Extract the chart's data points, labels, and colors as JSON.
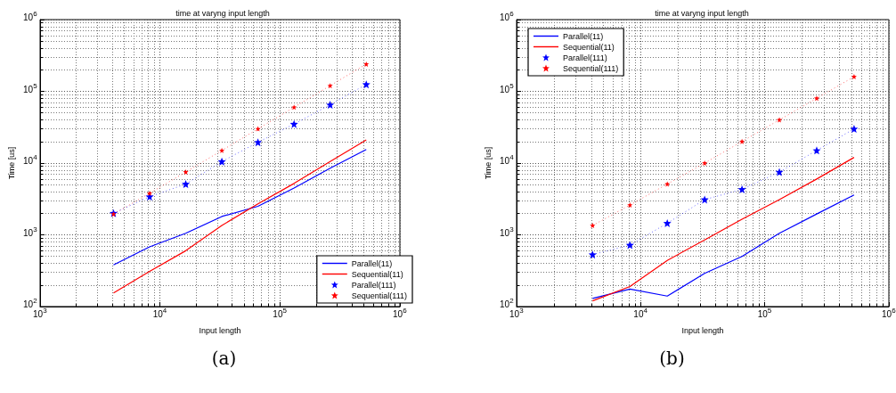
{
  "chart_data": [
    {
      "type": "line",
      "title": "time at varyng input length",
      "xlabel": "Input length",
      "ylabel": "Time [us]",
      "annotations": [
        "(a)"
      ],
      "x": [
        4096,
        8192,
        16384,
        32768,
        65536,
        131072,
        262144,
        524288
      ],
      "log": "xy",
      "grid": true,
      "legend": "bottom right",
      "xlim": [
        1000,
        1000000
      ],
      "xticks": [
        {
          "value": 1000,
          "label": "10$^{3}$"
        },
        {
          "value": 10000,
          "label": "10$^{4}$"
        },
        {
          "value": 100000,
          "label": "10$^{5}$"
        },
        {
          "value": 1000000,
          "label": "10$^{6}$"
        }
      ],
      "ylim": [
        100,
        1000000
      ],
      "yticks": [
        {
          "value": 100,
          "label": "10$^{2}$"
        },
        {
          "value": 1000,
          "label": "10$^{3}$"
        },
        {
          "value": 10000,
          "label": "10$^{4}$"
        },
        {
          "value": 100000,
          "label": "10$^{5}$"
        },
        {
          "value": 1000000,
          "label": "10$^{6}$"
        }
      ],
      "series": [
        {
          "name": "Parallel(11)",
          "color": "#0000ff",
          "marker": "none",
          "line_style": "solid",
          "values": [
            380,
            680,
            1050,
            1800,
            2500,
            4500,
            8500,
            15500
          ]
        },
        {
          "name": "Sequential(11)",
          "color": "#ff0000",
          "marker": "none",
          "line_style": "solid",
          "values": [
            155,
            310,
            600,
            1350,
            2700,
            5200,
            10500,
            21000
          ]
        },
        {
          "name": "Parallel(111)",
          "color": "#0000ff",
          "marker": "star",
          "line_style": "dotted",
          "values": [
            2000,
            3400,
            5100,
            10500,
            19500,
            35000,
            65000,
            125000
          ]
        },
        {
          "name": "Sequential(111)",
          "color": "#ff0000",
          "marker": "star",
          "line_style": "dotted",
          "values": [
            1950,
            3800,
            7500,
            15000,
            30000,
            60000,
            120000,
            240000
          ]
        }
      ]
    },
    {
      "type": "line",
      "title": "time at varyng input length",
      "xlabel": "Input length",
      "ylabel": "Time [us]",
      "annotations": [
        "(b)"
      ],
      "x": [
        4096,
        8192,
        16384,
        32768,
        65536,
        131072,
        262144,
        524288
      ],
      "log": "xy",
      "grid": true,
      "legend": "top left",
      "xlim": [
        1000,
        1000000
      ],
      "xticks": [
        {
          "value": 1000,
          "label": "10$^{3}$"
        },
        {
          "value": 10000,
          "label": "10$^{4}$"
        },
        {
          "value": 100000,
          "label": "10$^{5}$"
        },
        {
          "value": 1000000,
          "label": "10$^{6}$"
        }
      ],
      "ylim": [
        100,
        1000000
      ],
      "yticks": [
        {
          "value": 100,
          "label": "10$^{2}$"
        },
        {
          "value": 1000,
          "label": "10$^{3}$"
        },
        {
          "value": 10000,
          "label": "10$^{4}$"
        },
        {
          "value": 100000,
          "label": "10$^{5}$"
        },
        {
          "value": 1000000,
          "label": "10$^{6}$"
        }
      ],
      "series": [
        {
          "name": "Parallel(11)",
          "color": "#0000ff",
          "marker": "none",
          "line_style": "solid",
          "values": [
            130,
            175,
            140,
            290,
            500,
            1050,
            1950,
            3600
          ]
        },
        {
          "name": "Sequential(11)",
          "color": "#ff0000",
          "marker": "none",
          "line_style": "solid",
          "values": [
            120,
            190,
            440,
            850,
            1650,
            3100,
            6000,
            12000
          ]
        },
        {
          "name": "Parallel(111)",
          "color": "#0000ff",
          "marker": "star",
          "line_style": "dotted",
          "values": [
            530,
            720,
            1450,
            3100,
            4300,
            7500,
            15000,
            30000
          ]
        },
        {
          "name": "Sequential(111)",
          "color": "#ff0000",
          "marker": "star",
          "line_style": "dotted",
          "values": [
            1350,
            2600,
            5100,
            10000,
            20000,
            40000,
            80000,
            160000
          ]
        }
      ]
    }
  ]
}
